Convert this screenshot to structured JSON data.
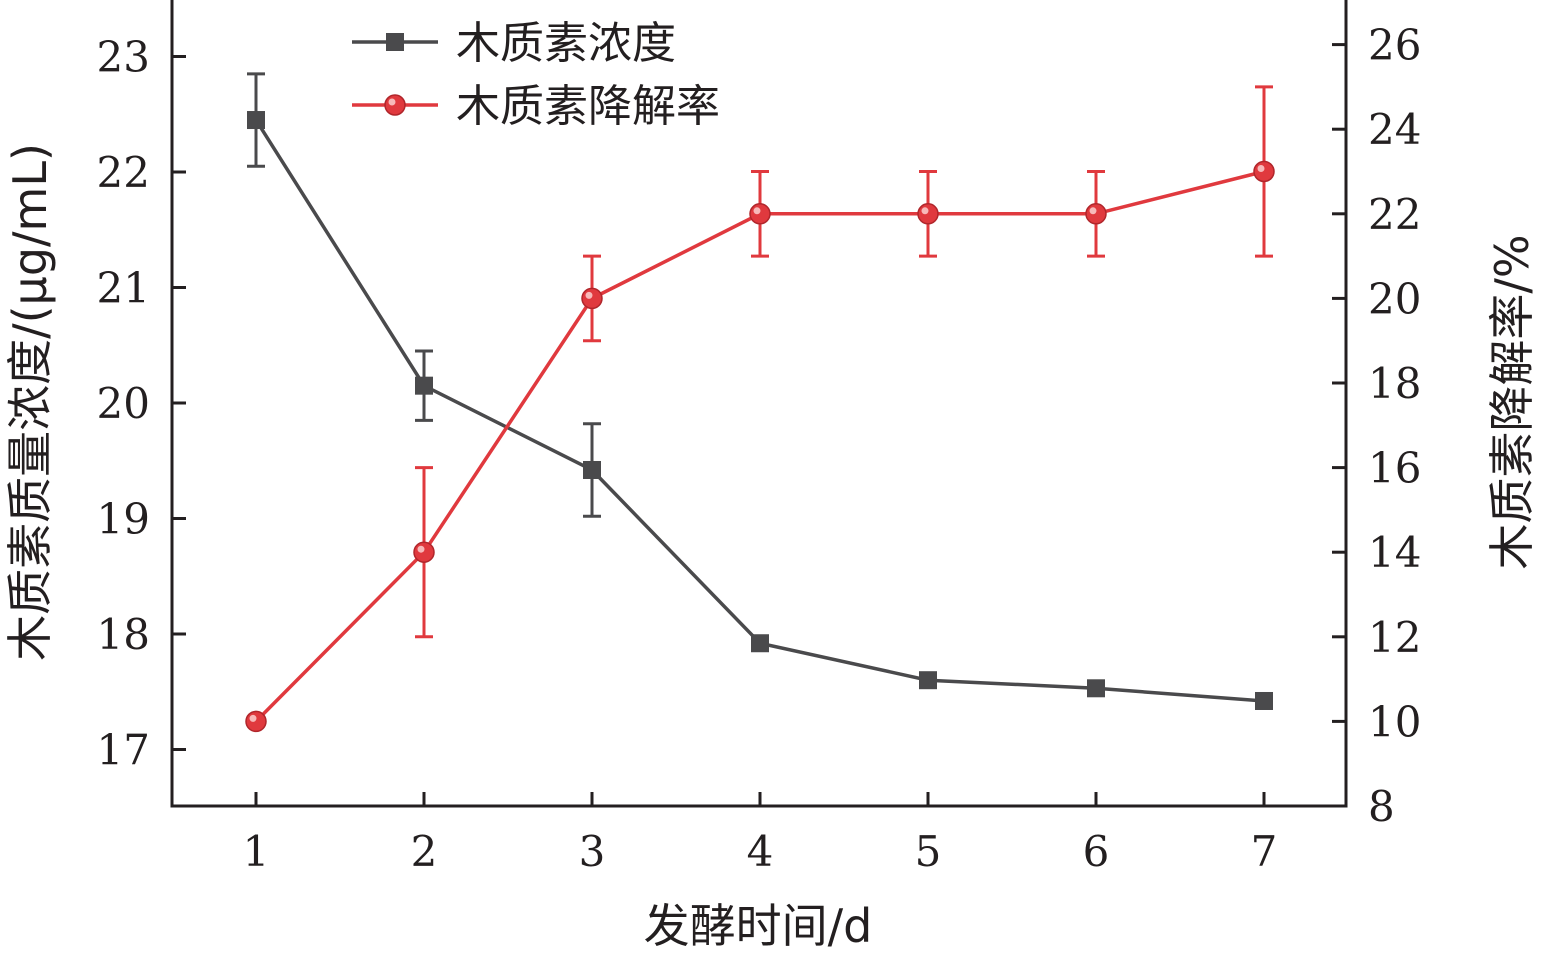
{
  "chart_data": {
    "type": "line",
    "title": "",
    "xlabel": "发酵时间/d",
    "ylabel_left": "木质素质量浓度/(μg/mL)",
    "ylabel_right": "木质素降解率/%",
    "x": [
      1,
      2,
      3,
      4,
      5,
      6,
      7
    ],
    "x_ticks": [
      "1",
      "2",
      "3",
      "4",
      "5",
      "6",
      "7"
    ],
    "y_left_lim": [
      16.5,
      23.5
    ],
    "y_left_ticks": [
      "17",
      "18",
      "19",
      "20",
      "21",
      "22",
      "23"
    ],
    "y_right_lim": [
      8,
      27
    ],
    "y_right_ticks": [
      "8",
      "10",
      "12",
      "14",
      "16",
      "18",
      "20",
      "22",
      "24",
      "26"
    ],
    "legend_position": "top-left",
    "grid": false,
    "series": [
      {
        "name": "木质素浓度",
        "axis": "left",
        "color": "#4a4a4c",
        "marker": "square",
        "values": [
          22.45,
          20.15,
          19.42,
          17.92,
          17.6,
          17.53,
          17.42
        ],
        "errors": [
          0.4,
          0.3,
          0.4,
          0.05,
          0.0,
          0.0,
          0.0
        ]
      },
      {
        "name": "木质素降解率",
        "axis": "right",
        "color": "#e0393e",
        "marker": "circle",
        "values": [
          10.0,
          14.0,
          20.0,
          22.0,
          22.0,
          22.0,
          23.0
        ],
        "errors": [
          0.0,
          2.0,
          1.0,
          1.0,
          1.0,
          1.0,
          2.0
        ]
      }
    ]
  }
}
